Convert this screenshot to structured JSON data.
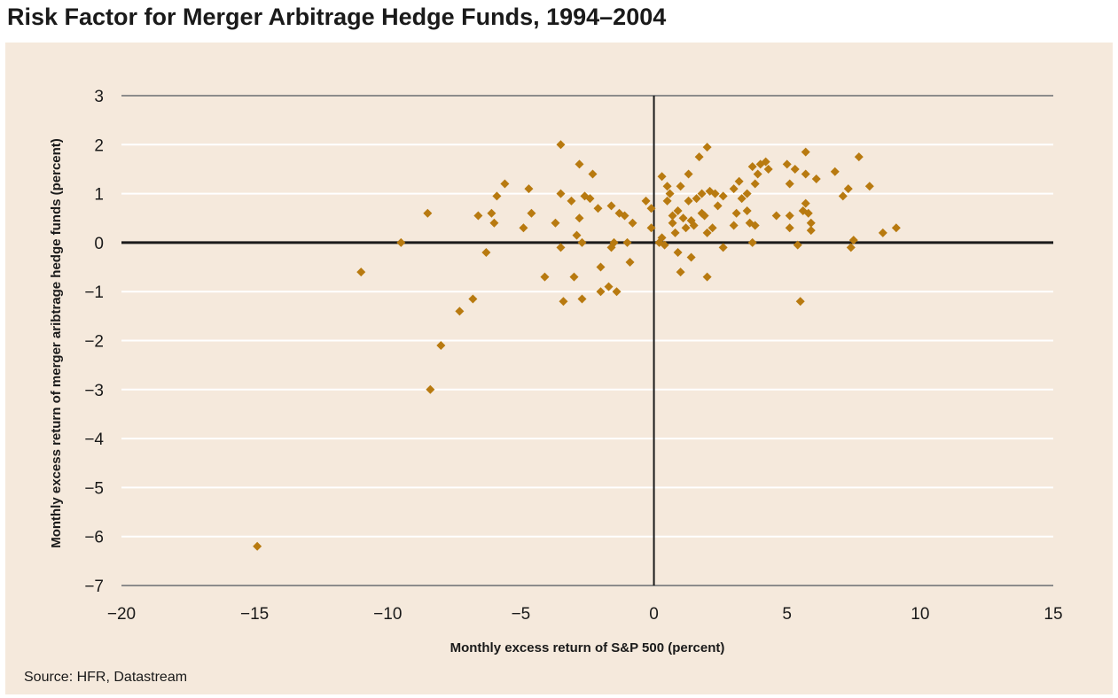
{
  "chart_data": {
    "type": "scatter",
    "title": "Risk Factor for Merger Arbitrage Hedge Funds, 1994–2004",
    "xlabel": "Monthly excess return of S&P 500 (percent)",
    "ylabel": "Monthly excess return of merger aribtrage hedge funds (percent)",
    "xlim": [
      -20,
      15
    ],
    "ylim": [
      -7,
      3
    ],
    "x_ticks": [
      -20,
      -15,
      -10,
      -5,
      0,
      5,
      10,
      15
    ],
    "x_tick_labels": [
      "−20",
      "−15",
      "−10",
      "−5",
      "0",
      "5",
      "10",
      "15"
    ],
    "y_ticks": [
      3,
      2,
      1,
      0,
      -1,
      -2,
      -3,
      -4,
      -5,
      -6,
      -7
    ],
    "y_tick_labels": [
      "3",
      "2",
      "1",
      "0",
      "−1",
      "−2",
      "−3",
      "−4",
      "−5",
      "−6",
      "−7"
    ],
    "grid": "horizontal",
    "marker_color": "#b87a10",
    "source": "Source: HFR, Datastream",
    "points": [
      [
        -14.9,
        -6.2
      ],
      [
        -11.0,
        -0.6
      ],
      [
        -9.5,
        0.0
      ],
      [
        -8.5,
        0.6
      ],
      [
        -8.4,
        -3.0
      ],
      [
        -8.0,
        -2.1
      ],
      [
        -7.3,
        -1.4
      ],
      [
        -6.8,
        -1.15
      ],
      [
        -6.6,
        0.55
      ],
      [
        -6.3,
        -0.2
      ],
      [
        -6.1,
        0.6
      ],
      [
        -6.0,
        0.4
      ],
      [
        -5.9,
        0.95
      ],
      [
        -5.6,
        1.2
      ],
      [
        -4.9,
        0.3
      ],
      [
        -4.7,
        1.1
      ],
      [
        -4.6,
        0.6
      ],
      [
        -4.1,
        -0.7
      ],
      [
        -3.7,
        0.4
      ],
      [
        -3.5,
        2.0
      ],
      [
        -3.5,
        1.0
      ],
      [
        -3.5,
        -0.1
      ],
      [
        -3.4,
        -1.2
      ],
      [
        -3.1,
        0.85
      ],
      [
        -3.0,
        -0.7
      ],
      [
        -2.9,
        0.15
      ],
      [
        -2.8,
        0.5
      ],
      [
        -2.8,
        1.6
      ],
      [
        -2.7,
        0.0
      ],
      [
        -2.7,
        -1.15
      ],
      [
        -2.6,
        0.95
      ],
      [
        -2.4,
        0.9
      ],
      [
        -2.3,
        1.4
      ],
      [
        -2.1,
        0.7
      ],
      [
        -2.0,
        -0.5
      ],
      [
        -2.0,
        -1.0
      ],
      [
        -1.7,
        -0.9
      ],
      [
        -1.6,
        0.75
      ],
      [
        -1.6,
        -0.1
      ],
      [
        -1.5,
        0.0
      ],
      [
        -1.4,
        -1.0
      ],
      [
        -1.3,
        0.6
      ],
      [
        -1.1,
        0.55
      ],
      [
        -1.0,
        0.0
      ],
      [
        -0.9,
        -0.4
      ],
      [
        -0.8,
        0.4
      ],
      [
        -0.3,
        0.85
      ],
      [
        -0.1,
        0.7
      ],
      [
        -0.1,
        0.3
      ],
      [
        0.2,
        0.0
      ],
      [
        0.3,
        1.35
      ],
      [
        0.3,
        0.1
      ],
      [
        0.4,
        -0.05
      ],
      [
        0.5,
        0.85
      ],
      [
        0.5,
        1.15
      ],
      [
        0.6,
        1.0
      ],
      [
        0.7,
        0.55
      ],
      [
        0.7,
        0.4
      ],
      [
        0.8,
        0.2
      ],
      [
        0.9,
        -0.2
      ],
      [
        0.9,
        0.65
      ],
      [
        1.0,
        1.15
      ],
      [
        1.0,
        -0.6
      ],
      [
        1.1,
        0.5
      ],
      [
        1.2,
        0.3
      ],
      [
        1.3,
        1.4
      ],
      [
        1.3,
        0.85
      ],
      [
        1.4,
        0.45
      ],
      [
        1.4,
        -0.3
      ],
      [
        1.5,
        0.35
      ],
      [
        1.6,
        0.9
      ],
      [
        1.7,
        1.75
      ],
      [
        1.8,
        0.6
      ],
      [
        1.8,
        1.0
      ],
      [
        1.9,
        0.55
      ],
      [
        2.0,
        1.95
      ],
      [
        2.0,
        -0.7
      ],
      [
        2.0,
        0.2
      ],
      [
        2.1,
        1.05
      ],
      [
        2.2,
        0.3
      ],
      [
        2.3,
        1.0
      ],
      [
        2.4,
        0.75
      ],
      [
        2.6,
        0.95
      ],
      [
        2.6,
        -0.1
      ],
      [
        3.0,
        1.1
      ],
      [
        3.0,
        0.35
      ],
      [
        3.1,
        0.6
      ],
      [
        3.2,
        1.25
      ],
      [
        3.3,
        0.9
      ],
      [
        3.5,
        0.65
      ],
      [
        3.5,
        1.0
      ],
      [
        3.6,
        0.4
      ],
      [
        3.7,
        0.0
      ],
      [
        3.7,
        1.55
      ],
      [
        3.8,
        1.2
      ],
      [
        3.8,
        0.35
      ],
      [
        3.9,
        1.4
      ],
      [
        4.0,
        1.6
      ],
      [
        4.2,
        1.65
      ],
      [
        4.3,
        1.5
      ],
      [
        4.6,
        0.55
      ],
      [
        5.0,
        1.6
      ],
      [
        5.1,
        1.2
      ],
      [
        5.1,
        0.55
      ],
      [
        5.1,
        0.3
      ],
      [
        5.3,
        1.5
      ],
      [
        5.4,
        -0.05
      ],
      [
        5.5,
        -1.2
      ],
      [
        5.6,
        0.65
      ],
      [
        5.7,
        1.85
      ],
      [
        5.7,
        1.4
      ],
      [
        5.7,
        0.8
      ],
      [
        5.8,
        0.6
      ],
      [
        5.9,
        0.4
      ],
      [
        5.9,
        0.25
      ],
      [
        6.1,
        1.3
      ],
      [
        6.8,
        1.45
      ],
      [
        7.1,
        0.95
      ],
      [
        7.3,
        1.1
      ],
      [
        7.4,
        -0.1
      ],
      [
        7.5,
        0.05
      ],
      [
        7.7,
        1.75
      ],
      [
        8.1,
        1.15
      ],
      [
        8.6,
        0.2
      ],
      [
        9.1,
        0.3
      ]
    ]
  }
}
